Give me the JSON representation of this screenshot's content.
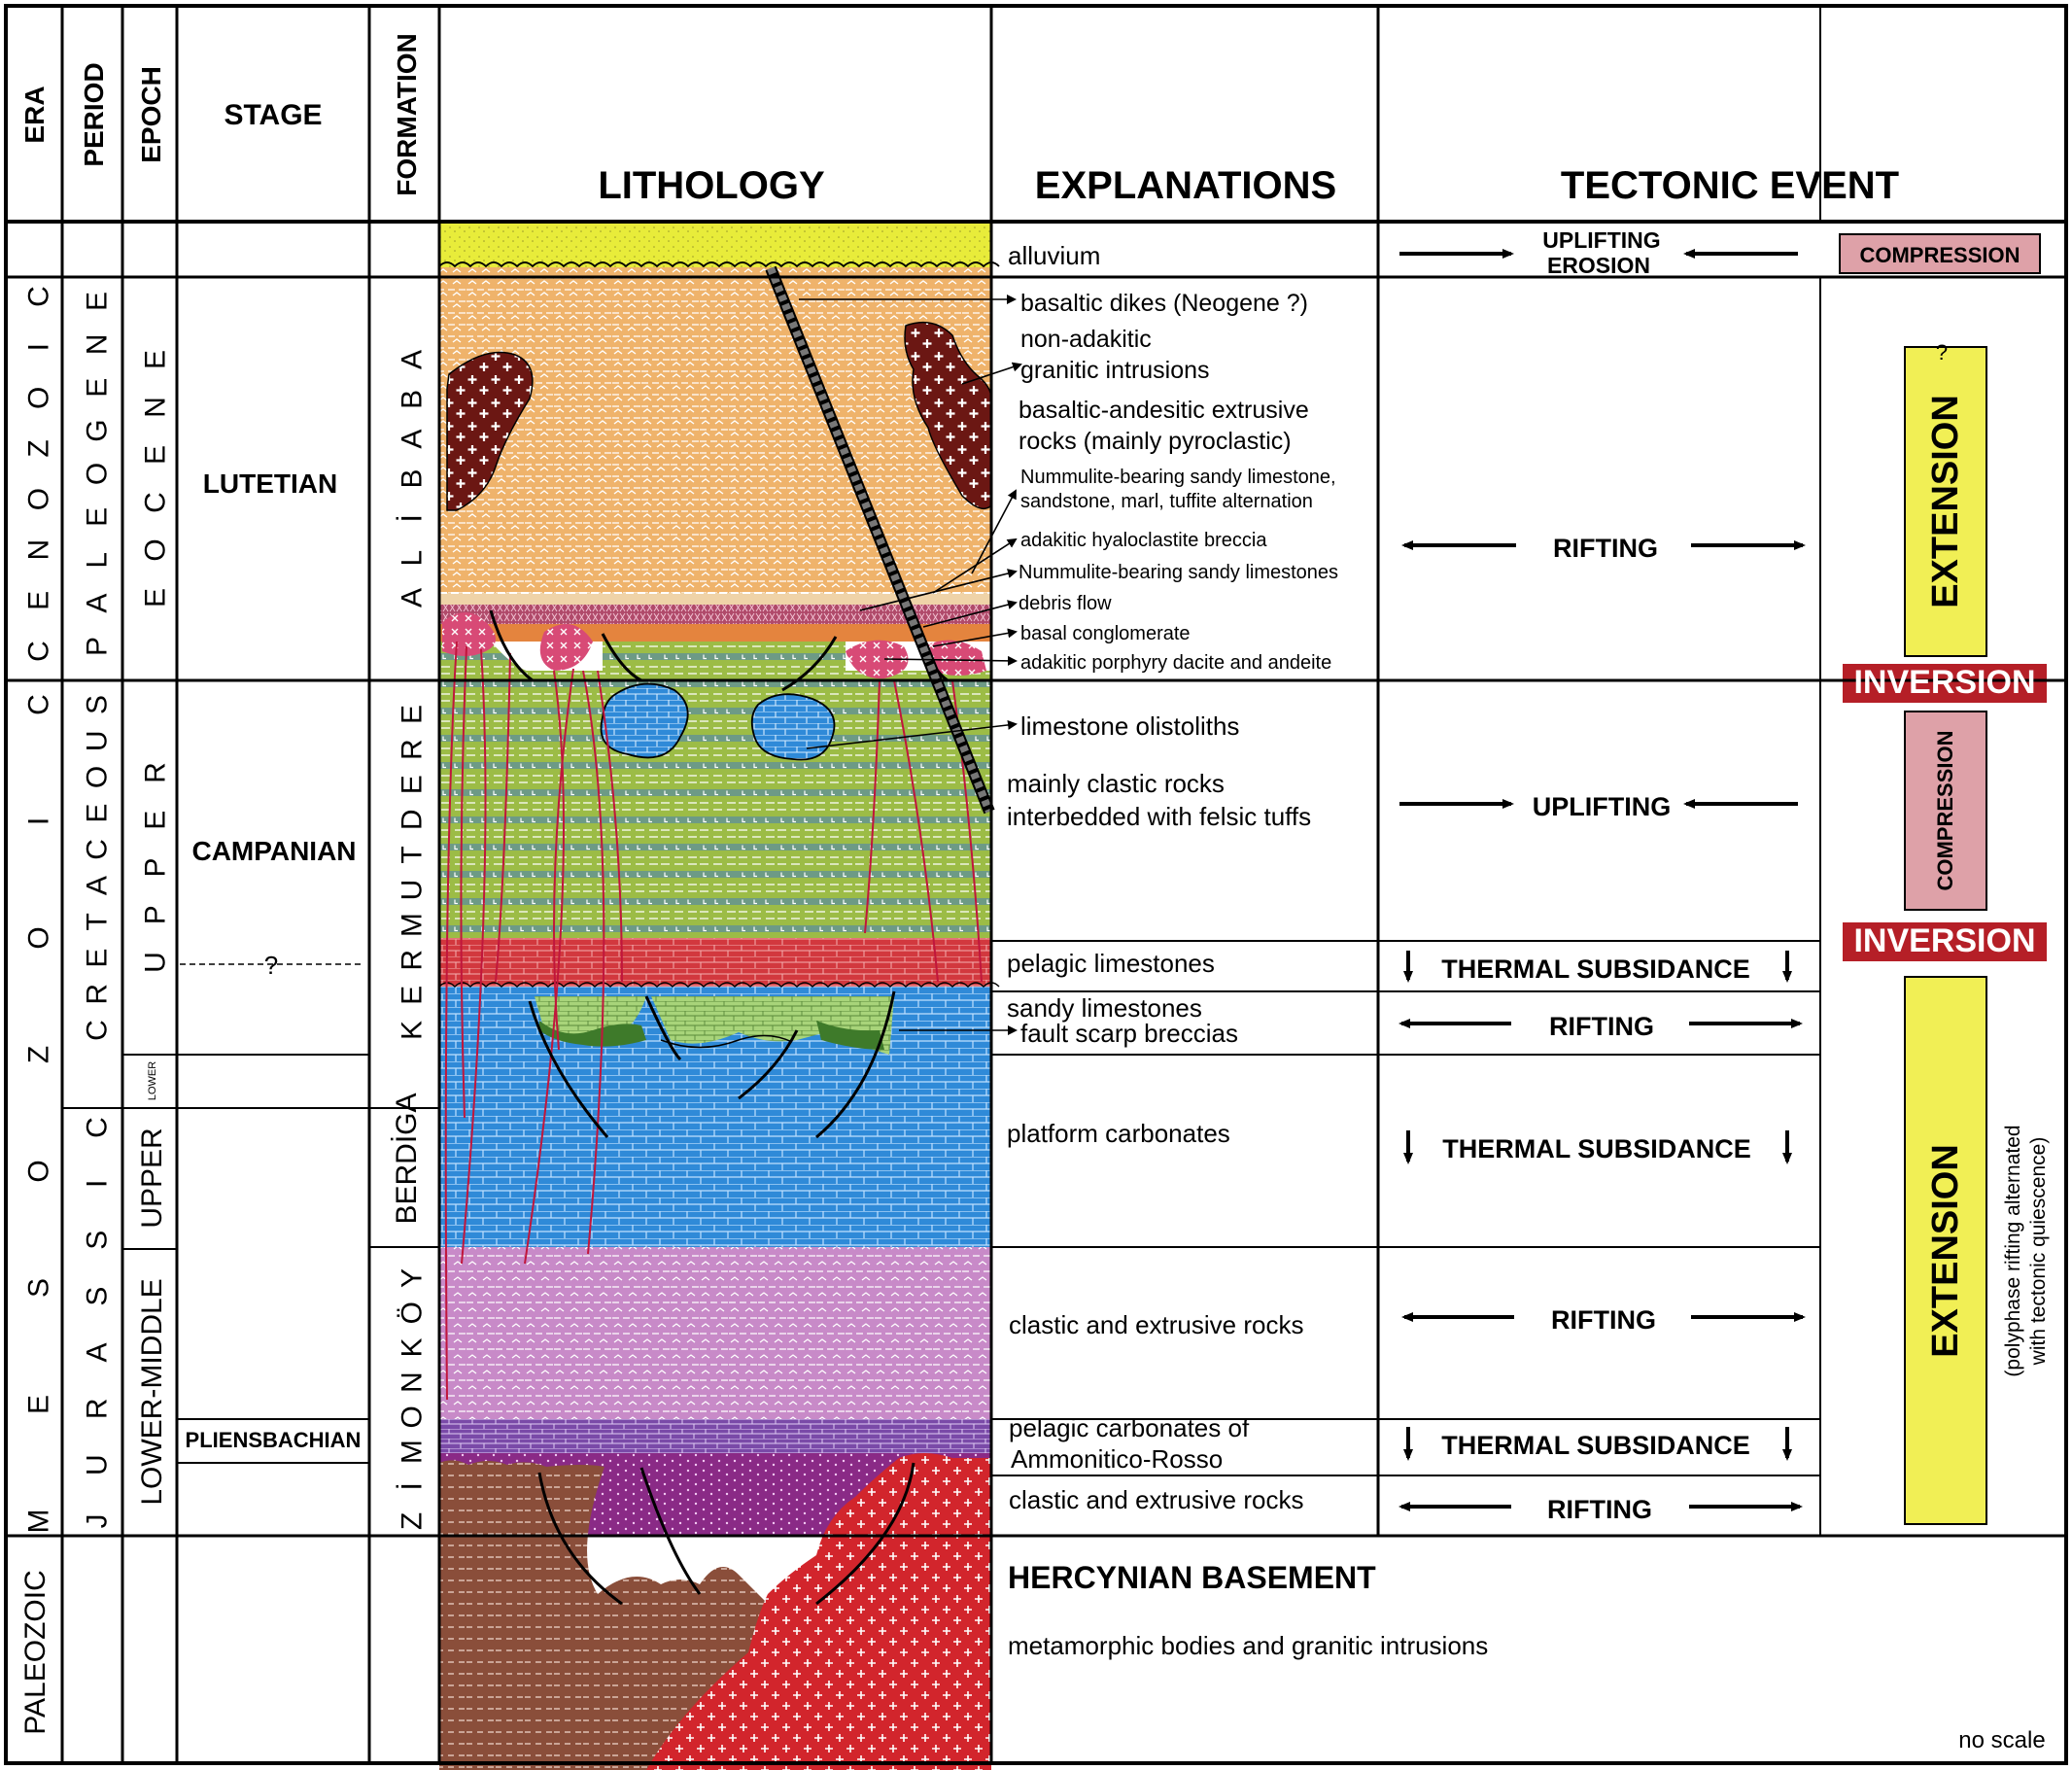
{
  "headers": {
    "era": "ERA",
    "period": "PERIOD",
    "epoch": "EPOCH",
    "stage": "STAGE",
    "formation": "FORMATION",
    "lithology": "LITHOLOGY",
    "explanations": "EXPLANATIONS",
    "tectonic_event": "TECTONIC EVENT"
  },
  "eras": [
    {
      "letters": [
        "C",
        "E",
        "N",
        "O",
        "Z",
        "O",
        "I",
        "C"
      ]
    },
    {
      "letters": [
        "M",
        "E",
        "S",
        "O",
        "Z",
        "O",
        "I",
        "C"
      ]
    },
    {
      "label": "PALEOZOIC"
    }
  ],
  "periods": [
    {
      "letters": [
        "P",
        "A",
        "L",
        "E",
        "O",
        "G",
        "E",
        "N",
        "E"
      ]
    },
    {
      "letters": [
        "C",
        "R",
        "E",
        "T",
        "A",
        "C",
        "E",
        "O",
        "U",
        "S"
      ]
    },
    {
      "letters": [
        "J",
        "U",
        "R",
        "A",
        "S",
        "S",
        "I",
        "C"
      ]
    }
  ],
  "epochs": [
    {
      "letters": [
        "E",
        "O",
        "C",
        "E",
        "N",
        "E"
      ]
    },
    {
      "letters": [
        "U",
        "P",
        "P",
        "E",
        "R"
      ]
    },
    {
      "label": "LOWER"
    },
    {
      "label": "UPPER"
    },
    {
      "label": "LOWER-MIDDLE"
    }
  ],
  "stages": {
    "lutetian": "LUTETIAN",
    "campanian": "CAMPANIAN",
    "campanian_boundary": "?",
    "pliensbachian": "PLIENSBACHIAN"
  },
  "formations": [
    {
      "letters": [
        "A",
        "L",
        "İ",
        "B",
        "A",
        "B",
        "A"
      ]
    },
    {
      "letters": [
        "K",
        "E",
        "R",
        "M",
        "U",
        "T",
        "D",
        "E",
        "R",
        "E"
      ]
    },
    {
      "label": "BERDİGA"
    },
    {
      "letters": [
        "Z",
        "İ",
        "M",
        "O",
        "N",
        "K",
        "Ö",
        "Y"
      ]
    }
  ],
  "explanations": {
    "alluvium": "alluvium",
    "basaltic_dikes": "basaltic dikes (Neogene ?)",
    "non_adakitic_1": "non-adakitic",
    "non_adakitic_2": "granitic intrusions",
    "basaltic_andesitic_1": "basaltic-andesitic extrusive",
    "basaltic_andesitic_2": "rocks (mainly pyroclastic)",
    "nummulite_alt_1": "Nummulite-bearing sandy limestone,",
    "nummulite_alt_2": "sandstone, marl, tuffite alternation",
    "hyaloclastite": "adakitic hyaloclastite breccia",
    "nummulite_sandy": "Nummulite-bearing sandy limestones",
    "debris_flow": "debris flow",
    "basal_conglomerate": "basal conglomerate",
    "porphyry": "adakitic porphyry dacite and andeite",
    "olistoliths": "limestone olistoliths",
    "clastic_felsic_1": "mainly clastic rocks",
    "clastic_felsic_2": "interbedded with felsic tuffs",
    "pelagic_limestones": "pelagic limestones",
    "sandy_limestones": "sandy limestones",
    "fault_scarp": "fault scarp breccias",
    "platform_carbonates": "platform carbonates",
    "clastic_extrusive_1": "clastic and extrusive rocks",
    "pelagic_carbonates_1": "pelagic carbonates of",
    "pelagic_carbonates_2": "Ammonitico-Rosso",
    "clastic_extrusive_2": "clastic and extrusive rocks",
    "hercynian_title": "HERCYNIAN BASEMENT",
    "hercynian_desc": "metamorphic bodies and granitic intrusions"
  },
  "tectonics": {
    "uplift_erosion_1": "UPLIFTING",
    "uplift_erosion_2": "EROSION",
    "rifting_1": "RIFTING",
    "uplifting": "UPLIFTING",
    "thermal_1": "THERMAL SUBSIDANCE",
    "rifting_2": "RIFTING",
    "thermal_2": "THERMAL SUBSIDANCE",
    "rifting_3": "RIFTING",
    "thermal_3": "THERMAL SUBSIDANCE",
    "rifting_4": "RIFTING"
  },
  "regimes": {
    "compression_top": "COMPRESSION",
    "extension_top": "EXTENSION",
    "extension_top_query": "?",
    "inversion_1": "INVERSION",
    "compression_mid": "COMPRESSION",
    "inversion_2": "INVERSION",
    "extension_bottom": "EXTENSION",
    "polyphase_1": "(polyphase rifting alternated",
    "polyphase_2": "with tectonic quiescence)"
  },
  "colors": {
    "alluvium": "#e8ec3a",
    "alibaba": "#efb36b",
    "granite_dark": "#6b1713",
    "kermutdere": "#9cbc46",
    "kermutdere_band": "#6d9a86",
    "pelagic_red": "#d2383e",
    "platform_blue": "#2f8ad8",
    "zimonkoy_pink": "#c88ac8",
    "ammonitico": "#7a4aa8",
    "clastic_purple": "#8a2a86",
    "basement_brown": "#8a4e3a",
    "basement_granite": "#d2252c",
    "fault_red": "#c0163c",
    "extension_yellow": "#f1ef55",
    "compression_pink": "#dea1a8",
    "inversion_red": "#b51f27",
    "sandy_green": "#7ab55a",
    "dike": "#3e3e3e"
  },
  "footer": {
    "no_scale": "no scale"
  }
}
